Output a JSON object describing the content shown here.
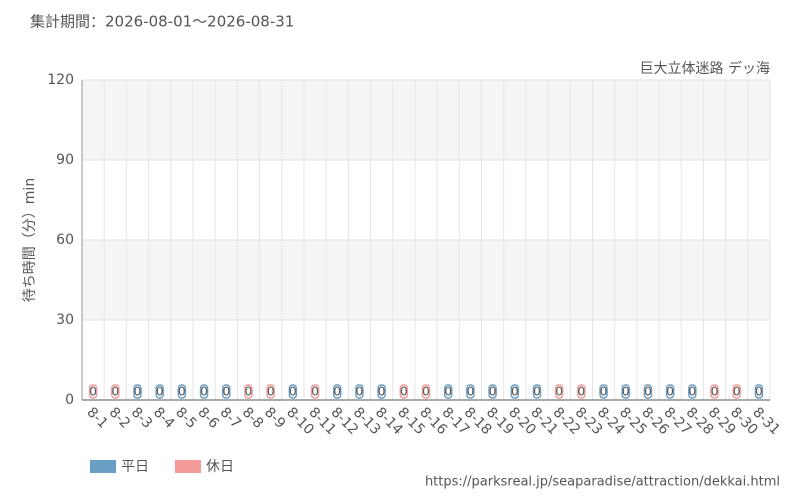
{
  "chart_data": {
    "type": "bar",
    "title": "集計期間：2026-08-01～2026-08-31",
    "subtitle": "巨大立体迷路 デッ海",
    "y_label": "待ち時間（分）min",
    "source": "https://parksreal.jp/seaparadise/attraction/dekkai.html",
    "categories": [
      "8-1",
      "8-2",
      "8-3",
      "8-4",
      "8-5",
      "8-6",
      "8-7",
      "8-8",
      "8-9",
      "8-10",
      "8-11",
      "8-12",
      "8-13",
      "8-14",
      "8-15",
      "8-16",
      "8-17",
      "8-18",
      "8-19",
      "8-20",
      "8-21",
      "8-22",
      "8-23",
      "8-24",
      "8-25",
      "8-26",
      "8-27",
      "8-28",
      "8-29",
      "8-30",
      "8-31"
    ],
    "series": [
      {
        "name": "平日",
        "color": "#6a9ec5",
        "values": [
          null,
          null,
          0,
          0,
          0,
          0,
          0,
          null,
          null,
          0,
          null,
          0,
          0,
          0,
          null,
          null,
          0,
          0,
          0,
          0,
          0,
          null,
          null,
          0,
          0,
          0,
          0,
          0,
          null,
          null,
          0
        ]
      },
      {
        "name": "休日",
        "color": "#f59a9a",
        "values": [
          0,
          0,
          null,
          null,
          null,
          null,
          null,
          0,
          0,
          null,
          0,
          null,
          null,
          null,
          0,
          0,
          null,
          null,
          null,
          null,
          null,
          0,
          0,
          null,
          null,
          null,
          null,
          null,
          0,
          0,
          null
        ]
      }
    ],
    "ylim": [
      0,
      120
    ],
    "yticks": [
      0,
      30,
      60,
      90,
      120
    ],
    "grid": true
  }
}
